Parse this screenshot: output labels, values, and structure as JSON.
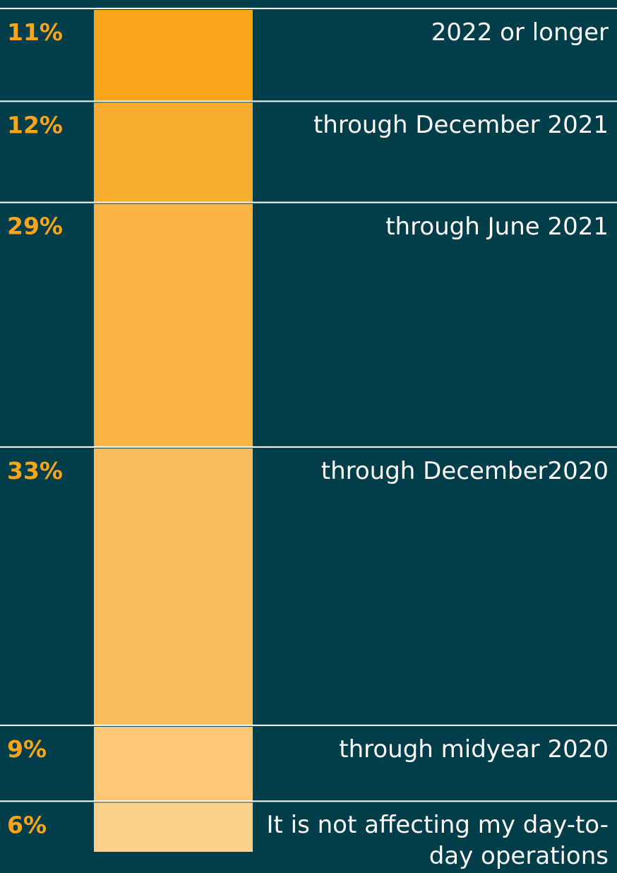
{
  "chart_data": {
    "type": "stacked-column",
    "categories": [
      "2022 or longer",
      "through December 2021",
      "through June 2021",
      "through December2020",
      "through midyear 2020",
      "It is not affecting my day-to-day operations"
    ],
    "values": [
      11,
      12,
      29,
      33,
      9,
      6
    ],
    "value_labels": [
      "11%",
      "12%",
      "29%",
      "33%",
      "9%",
      "6%"
    ],
    "colors": [
      "#f9a51a",
      "#f9ad2f",
      "#fab445",
      "#fbbd5b",
      "#fcc776",
      "#fdd08c"
    ],
    "ylim": [
      0,
      100
    ]
  }
}
